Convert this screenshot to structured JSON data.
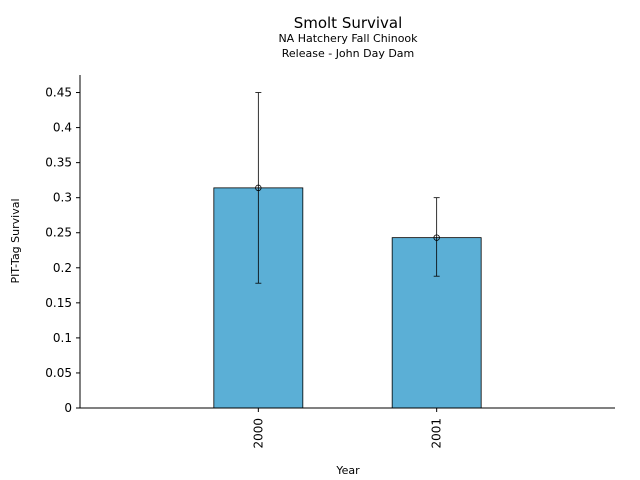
{
  "chart_data": {
    "type": "bar",
    "title": "Smolt Survival",
    "subtitle_lines": [
      "NA Hatchery Fall Chinook",
      "Release - John Day Dam"
    ],
    "xlabel": "Year",
    "ylabel": "PIT-Tag Survival",
    "categories": [
      "2000",
      "2001"
    ],
    "values": [
      0.314,
      0.243
    ],
    "error_low": [
      0.178,
      0.188
    ],
    "error_high": [
      0.45,
      0.3
    ],
    "ylim": [
      0,
      0.475
    ],
    "yticks": [
      0,
      0.05,
      0.1,
      0.15,
      0.2,
      0.25,
      0.3,
      0.35,
      0.4,
      0.45
    ],
    "ytick_labels": [
      "0",
      "0.05",
      "0.1",
      "0.15",
      "0.2",
      "0.25",
      "0.3",
      "0.35",
      "0.4",
      "0.45"
    ],
    "grid": false,
    "bar_color": "#5bafd6",
    "edge_color": "#000000"
  }
}
